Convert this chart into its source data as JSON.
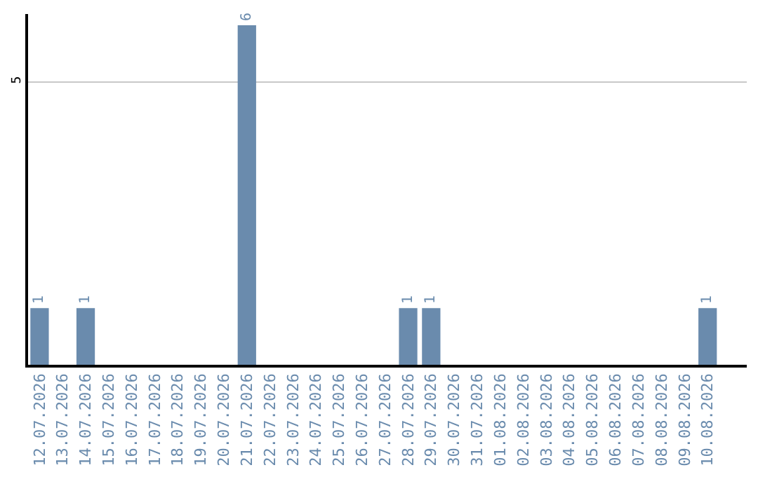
{
  "chart_data": {
    "type": "bar",
    "categories": [
      "12.07.2026",
      "13.07.2026",
      "14.07.2026",
      "15.07.2026",
      "16.07.2026",
      "17.07.2026",
      "18.07.2026",
      "19.07.2026",
      "20.07.2026",
      "21.07.2026",
      "22.07.2026",
      "23.07.2026",
      "24.07.2026",
      "25.07.2026",
      "26.07.2026",
      "27.07.2026",
      "28.07.2026",
      "29.07.2026",
      "30.07.2026",
      "31.07.2026",
      "01.08.2026",
      "02.08.2026",
      "03.08.2026",
      "04.08.2026",
      "05.08.2026",
      "06.08.2026",
      "07.08.2026",
      "08.08.2026",
      "09.08.2026",
      "10.08.2026"
    ],
    "values": [
      1,
      0,
      1,
      0,
      0,
      0,
      0,
      0,
      0,
      6,
      0,
      0,
      0,
      0,
      0,
      0,
      1,
      1,
      0,
      0,
      0,
      0,
      0,
      0,
      0,
      0,
      0,
      0,
      0,
      1
    ],
    "value_labels": [
      "1",
      null,
      "1",
      null,
      null,
      null,
      null,
      null,
      null,
      "6",
      null,
      null,
      null,
      null,
      null,
      null,
      "1",
      "1",
      null,
      null,
      null,
      null,
      null,
      null,
      null,
      null,
      null,
      null,
      null,
      "1"
    ],
    "color": "#6a8bad",
    "ylim": [
      0,
      6.2
    ],
    "yticks": [
      5
    ],
    "grid": "y",
    "legend": false
  }
}
